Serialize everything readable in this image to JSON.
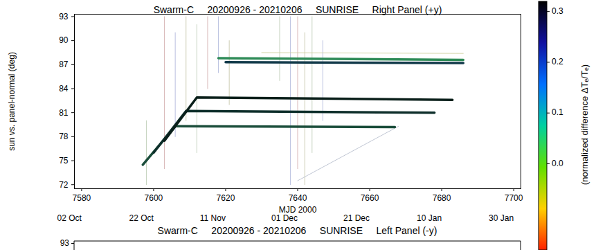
{
  "chart_data": [
    {
      "type": "line",
      "title": "Swarm-C     20200926 - 20210206     SUNRISE     Right Panel (+y)",
      "xlabel": "MJD 2000",
      "ylabel": "sun vs. panel-normal (deg)",
      "xlim": [
        7578,
        7702
      ],
      "xticks": [
        7580,
        7600,
        7620,
        7640,
        7660,
        7680,
        7700
      ],
      "x2ticks": [
        {
          "value": 7580,
          "label": "02 Oct"
        },
        {
          "value": 7600,
          "label": "22 Oct"
        },
        {
          "value": 7620,
          "label": "11 Nov"
        },
        {
          "value": 7640,
          "label": "01 Dec"
        },
        {
          "value": 7660,
          "label": "21 Dec"
        },
        {
          "value": 7680,
          "label": "10 Jan"
        },
        {
          "value": 7700,
          "label": "30 Jan"
        }
      ],
      "ylim": [
        71.5,
        93.3
      ],
      "yticks": [
        72,
        75,
        78,
        81,
        84,
        87,
        90,
        93
      ],
      "grid": false,
      "series": [
        {
          "x": [
            7598,
            7598
          ],
          "values": [
            72,
            80
          ],
          "color": "#b8c8b0",
          "line_style": "hairline"
        },
        {
          "x": [
            7603,
            7603
          ],
          "values": [
            74,
            93
          ],
          "color": "#d0a8a8",
          "line_style": "hairline"
        },
        {
          "x": [
            7606,
            7606
          ],
          "values": [
            78,
            91
          ],
          "color": "#a8b0d8",
          "line_style": "hairline"
        },
        {
          "x": [
            7609,
            7609
          ],
          "values": [
            80,
            93
          ],
          "color": "#c0c0a0",
          "line_style": "hairline"
        },
        {
          "x": [
            7612,
            7612
          ],
          "values": [
            76,
            92
          ],
          "color": "#b8c8b0",
          "line_style": "hairline"
        },
        {
          "x": [
            7615,
            7615
          ],
          "values": [
            84,
            93
          ],
          "color": "#d0a8a8",
          "line_style": "hairline"
        },
        {
          "x": [
            7618,
            7618
          ],
          "values": [
            86,
            93
          ],
          "color": "#a8b0d8",
          "line_style": "hairline"
        },
        {
          "x": [
            7621,
            7621
          ],
          "values": [
            82,
            90
          ],
          "color": "#c0c0a0",
          "line_style": "hairline"
        },
        {
          "x": [
            7635,
            7635
          ],
          "values": [
            85,
            93
          ],
          "color": "#b8c8b0",
          "line_style": "hairline"
        },
        {
          "x": [
            7638,
            7638
          ],
          "values": [
            72,
            93
          ],
          "color": "#a8b0d8",
          "line_style": "hairline"
        },
        {
          "x": [
            7640,
            7640
          ],
          "values": [
            74,
            93
          ],
          "color": "#d0a8a8",
          "line_style": "hairline"
        },
        {
          "x": [
            7642,
            7642
          ],
          "values": [
            72,
            91
          ],
          "color": "#c0c0a0",
          "line_style": "hairline"
        },
        {
          "x": [
            7644,
            7644
          ],
          "values": [
            76,
            93
          ],
          "color": "#b8c8b0",
          "line_style": "hairline"
        },
        {
          "x": [
            7647,
            7647
          ],
          "values": [
            80,
            90
          ],
          "color": "#a8b0d8",
          "line_style": "hairline"
        },
        {
          "x": [
            7640,
            7668
          ],
          "values": [
            72.5,
            79.3
          ],
          "color": "#b0b8c8",
          "line_style": "hairline"
        },
        {
          "x": [
            7630,
            7686
          ],
          "values": [
            88.5,
            88.4
          ],
          "color": "#c8c890",
          "line_style": "hairline"
        },
        {
          "x": [
            7597,
            7606,
            7667
          ],
          "values": [
            74.5,
            79.3,
            79.2
          ],
          "color": "#1a4d3a",
          "line_style": "solid"
        },
        {
          "x": [
            7600,
            7609,
            7678
          ],
          "values": [
            76.0,
            81.2,
            81.0
          ],
          "color": "#0d2e2a",
          "line_style": "solid"
        },
        {
          "x": [
            7603,
            7612,
            7683
          ],
          "values": [
            77.5,
            82.9,
            82.6
          ],
          "color": "#0a1f1a",
          "line_style": "solid"
        },
        {
          "x": [
            7618,
            7686
          ],
          "values": [
            87.8,
            87.6
          ],
          "color": "#2e8b57",
          "line_style": "solid"
        },
        {
          "x": [
            7620,
            7686
          ],
          "values": [
            87.3,
            87.2
          ],
          "color": "#123a4a",
          "line_style": "solid"
        }
      ],
      "colorbar": {
        "range": [
          -0.17,
          0.32
        ],
        "ticks": [
          {
            "value": 0,
            "label": "0.0"
          },
          {
            "value": 0.1,
            "label": "0.1"
          },
          {
            "value": 0.2,
            "label": "0.2"
          },
          {
            "value": 0.3,
            "label": "0.3"
          }
        ],
        "label": "(normalized difference ΔTₑ/Tₑ)",
        "colors": [
          "#ff2000",
          "#ffd000",
          "#60e000",
          "#00d0a0",
          "#0070ff",
          "#1010a0",
          "#000000"
        ]
      }
    },
    {
      "type": "line",
      "title": "Swarm-C     20200926 - 20210206     SUNRISE     Left Panel (-y)",
      "xlim": [
        7578,
        7702
      ],
      "ylim": [
        71.5,
        93.3
      ],
      "yticks": [
        93
      ]
    }
  ]
}
